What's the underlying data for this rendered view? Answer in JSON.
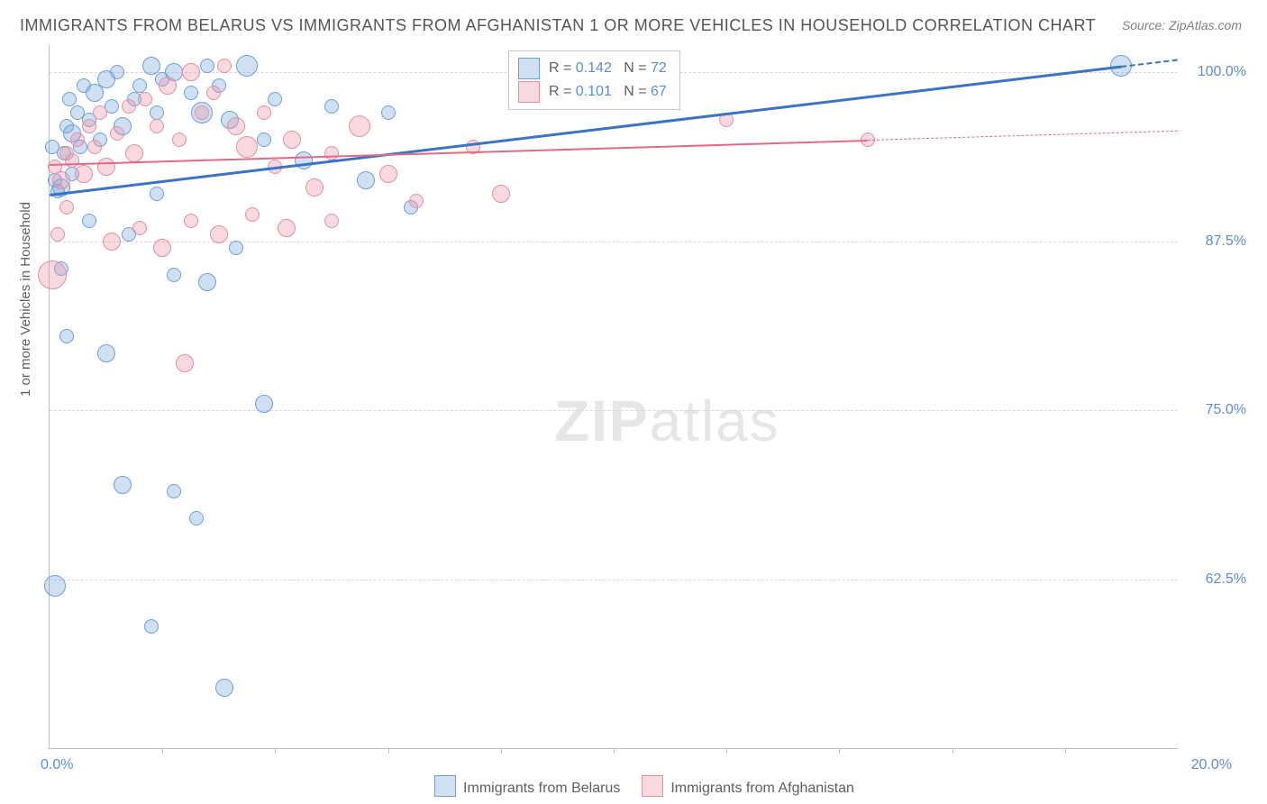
{
  "title": "IMMIGRANTS FROM BELARUS VS IMMIGRANTS FROM AFGHANISTAN 1 OR MORE VEHICLES IN HOUSEHOLD CORRELATION CHART",
  "source": "Source: ZipAtlas.com",
  "yaxis_title": "1 or more Vehicles in Household",
  "watermark_a": "ZIP",
  "watermark_b": "atlas",
  "chart": {
    "type": "scatter",
    "xlim": [
      0,
      20
    ],
    "ylim": [
      50,
      102
    ],
    "x_ticks": [
      2,
      4,
      6,
      8,
      10,
      12,
      14,
      16,
      18
    ],
    "y_gridlines": [
      62.5,
      75.0,
      87.5,
      100.0
    ],
    "y_tick_labels": [
      "62.5%",
      "75.0%",
      "87.5%",
      "100.0%"
    ],
    "x_min_label": "0.0%",
    "x_max_label": "20.0%",
    "background_color": "#ffffff",
    "grid_color": "#d8d8d8",
    "axis_color": "#bfbfbf",
    "tick_label_color": "#5b8dd6",
    "axis_title_color": "#606060",
    "series": [
      {
        "name": "Immigrants from Belarus",
        "fill": "rgba(120,165,220,0.35)",
        "stroke": "#6f9fd8",
        "R": "0.142",
        "N": "72",
        "trend": {
          "x1": 0,
          "y1": 91.0,
          "x2": 19.0,
          "y2": 100.5,
          "color": "#3a74c4",
          "width": 3,
          "dashed_after_x": 19.0
        },
        "points": [
          {
            "x": 0.1,
            "y": 92.0,
            "r": 8
          },
          {
            "x": 0.15,
            "y": 91.2,
            "r": 8
          },
          {
            "x": 0.2,
            "y": 91.5,
            "r": 10
          },
          {
            "x": 0.25,
            "y": 94.0,
            "r": 8
          },
          {
            "x": 0.3,
            "y": 96.0,
            "r": 8
          },
          {
            "x": 0.35,
            "y": 98.0,
            "r": 8
          },
          {
            "x": 0.4,
            "y": 95.5,
            "r": 10
          },
          {
            "x": 0.5,
            "y": 97.0,
            "r": 8
          },
          {
            "x": 0.55,
            "y": 94.5,
            "r": 8
          },
          {
            "x": 0.6,
            "y": 99.0,
            "r": 8
          },
          {
            "x": 0.7,
            "y": 96.5,
            "r": 8
          },
          {
            "x": 0.8,
            "y": 98.5,
            "r": 10
          },
          {
            "x": 0.9,
            "y": 95.0,
            "r": 8
          },
          {
            "x": 1.0,
            "y": 99.5,
            "r": 10
          },
          {
            "x": 1.1,
            "y": 97.5,
            "r": 8
          },
          {
            "x": 1.2,
            "y": 100.0,
            "r": 8
          },
          {
            "x": 1.3,
            "y": 96.0,
            "r": 10
          },
          {
            "x": 1.5,
            "y": 98.0,
            "r": 8
          },
          {
            "x": 1.6,
            "y": 99.0,
            "r": 8
          },
          {
            "x": 1.8,
            "y": 100.5,
            "r": 10
          },
          {
            "x": 1.9,
            "y": 97.0,
            "r": 8
          },
          {
            "x": 2.0,
            "y": 99.5,
            "r": 8
          },
          {
            "x": 2.2,
            "y": 100.0,
            "r": 10
          },
          {
            "x": 2.5,
            "y": 98.5,
            "r": 8
          },
          {
            "x": 2.7,
            "y": 97.0,
            "r": 12
          },
          {
            "x": 2.8,
            "y": 100.5,
            "r": 8
          },
          {
            "x": 3.0,
            "y": 99.0,
            "r": 8
          },
          {
            "x": 3.2,
            "y": 96.5,
            "r": 10
          },
          {
            "x": 3.5,
            "y": 100.5,
            "r": 12
          },
          {
            "x": 3.8,
            "y": 95.0,
            "r": 8
          },
          {
            "x": 4.0,
            "y": 98.0,
            "r": 8
          },
          {
            "x": 4.5,
            "y": 93.5,
            "r": 10
          },
          {
            "x": 5.0,
            "y": 97.5,
            "r": 8
          },
          {
            "x": 5.6,
            "y": 92.0,
            "r": 10
          },
          {
            "x": 6.0,
            "y": 97.0,
            "r": 8
          },
          {
            "x": 6.4,
            "y": 90.0,
            "r": 8
          },
          {
            "x": 19.0,
            "y": 100.5,
            "r": 12
          },
          {
            "x": 0.3,
            "y": 80.5,
            "r": 8
          },
          {
            "x": 1.0,
            "y": 79.2,
            "r": 10
          },
          {
            "x": 2.2,
            "y": 85.0,
            "r": 8
          },
          {
            "x": 2.8,
            "y": 84.5,
            "r": 10
          },
          {
            "x": 3.3,
            "y": 87.0,
            "r": 8
          },
          {
            "x": 3.8,
            "y": 75.5,
            "r": 10
          },
          {
            "x": 1.3,
            "y": 69.5,
            "r": 10
          },
          {
            "x": 2.2,
            "y": 69.0,
            "r": 8
          },
          {
            "x": 2.6,
            "y": 67.0,
            "r": 8
          },
          {
            "x": 0.1,
            "y": 62.0,
            "r": 12
          },
          {
            "x": 1.8,
            "y": 59.0,
            "r": 8
          },
          {
            "x": 3.1,
            "y": 54.5,
            "r": 10
          },
          {
            "x": 0.7,
            "y": 89.0,
            "r": 8
          },
          {
            "x": 1.4,
            "y": 88.0,
            "r": 8
          },
          {
            "x": 1.9,
            "y": 91.0,
            "r": 8
          },
          {
            "x": 0.2,
            "y": 85.5,
            "r": 8
          },
          {
            "x": 0.05,
            "y": 94.5,
            "r": 8
          },
          {
            "x": 0.4,
            "y": 92.5,
            "r": 8
          }
        ]
      },
      {
        "name": "Immigrants from Afghanistan",
        "fill": "rgba(235,145,165,0.35)",
        "stroke": "#e38fa4",
        "R": "0.101",
        "N": "67",
        "trend": {
          "x1": 0,
          "y1": 93.2,
          "x2": 14.5,
          "y2": 95.0,
          "color": "#e26a88",
          "width": 2,
          "dashed_after_x": 14.5
        },
        "points": [
          {
            "x": 0.1,
            "y": 93.0,
            "r": 8
          },
          {
            "x": 0.2,
            "y": 92.0,
            "r": 10
          },
          {
            "x": 0.3,
            "y": 94.0,
            "r": 8
          },
          {
            "x": 0.4,
            "y": 93.5,
            "r": 8
          },
          {
            "x": 0.5,
            "y": 95.0,
            "r": 8
          },
          {
            "x": 0.6,
            "y": 92.5,
            "r": 10
          },
          {
            "x": 0.7,
            "y": 96.0,
            "r": 8
          },
          {
            "x": 0.8,
            "y": 94.5,
            "r": 8
          },
          {
            "x": 0.9,
            "y": 97.0,
            "r": 8
          },
          {
            "x": 1.0,
            "y": 93.0,
            "r": 10
          },
          {
            "x": 1.2,
            "y": 95.5,
            "r": 8
          },
          {
            "x": 1.4,
            "y": 97.5,
            "r": 8
          },
          {
            "x": 1.5,
            "y": 94.0,
            "r": 10
          },
          {
            "x": 1.7,
            "y": 98.0,
            "r": 8
          },
          {
            "x": 1.9,
            "y": 96.0,
            "r": 8
          },
          {
            "x": 2.1,
            "y": 99.0,
            "r": 10
          },
          {
            "x": 2.3,
            "y": 95.0,
            "r": 8
          },
          {
            "x": 2.5,
            "y": 100.0,
            "r": 10
          },
          {
            "x": 2.7,
            "y": 97.0,
            "r": 8
          },
          {
            "x": 2.9,
            "y": 98.5,
            "r": 8
          },
          {
            "x": 3.1,
            "y": 100.5,
            "r": 8
          },
          {
            "x": 3.3,
            "y": 96.0,
            "r": 10
          },
          {
            "x": 3.5,
            "y": 94.5,
            "r": 12
          },
          {
            "x": 3.8,
            "y": 97.0,
            "r": 8
          },
          {
            "x": 4.0,
            "y": 93.0,
            "r": 8
          },
          {
            "x": 4.3,
            "y": 95.0,
            "r": 10
          },
          {
            "x": 4.7,
            "y": 91.5,
            "r": 10
          },
          {
            "x": 5.0,
            "y": 94.0,
            "r": 8
          },
          {
            "x": 5.5,
            "y": 96.0,
            "r": 12
          },
          {
            "x": 6.0,
            "y": 92.5,
            "r": 10
          },
          {
            "x": 6.5,
            "y": 90.5,
            "r": 8
          },
          {
            "x": 7.5,
            "y": 94.5,
            "r": 8
          },
          {
            "x": 8.0,
            "y": 91.0,
            "r": 10
          },
          {
            "x": 0.05,
            "y": 85.0,
            "r": 16
          },
          {
            "x": 1.1,
            "y": 87.5,
            "r": 10
          },
          {
            "x": 1.6,
            "y": 88.5,
            "r": 8
          },
          {
            "x": 2.0,
            "y": 87.0,
            "r": 10
          },
          {
            "x": 2.5,
            "y": 89.0,
            "r": 8
          },
          {
            "x": 3.0,
            "y": 88.0,
            "r": 10
          },
          {
            "x": 3.6,
            "y": 89.5,
            "r": 8
          },
          {
            "x": 4.2,
            "y": 88.5,
            "r": 10
          },
          {
            "x": 5.0,
            "y": 89.0,
            "r": 8
          },
          {
            "x": 2.4,
            "y": 78.5,
            "r": 10
          },
          {
            "x": 14.5,
            "y": 95.0,
            "r": 8
          },
          {
            "x": 12.0,
            "y": 96.5,
            "r": 8
          },
          {
            "x": 0.3,
            "y": 90.0,
            "r": 8
          },
          {
            "x": 0.15,
            "y": 88.0,
            "r": 8
          }
        ]
      }
    ]
  },
  "legend_box": {
    "rows": [
      {
        "R_label": "R =",
        "R": "0.142",
        "N_label": "N =",
        "N": "72"
      },
      {
        "R_label": "R =",
        "R": "0.101",
        "N_label": "N =",
        "N": "67"
      }
    ]
  },
  "bottom_legend": {
    "items": [
      "Immigrants from Belarus",
      "Immigrants from Afghanistan"
    ]
  }
}
